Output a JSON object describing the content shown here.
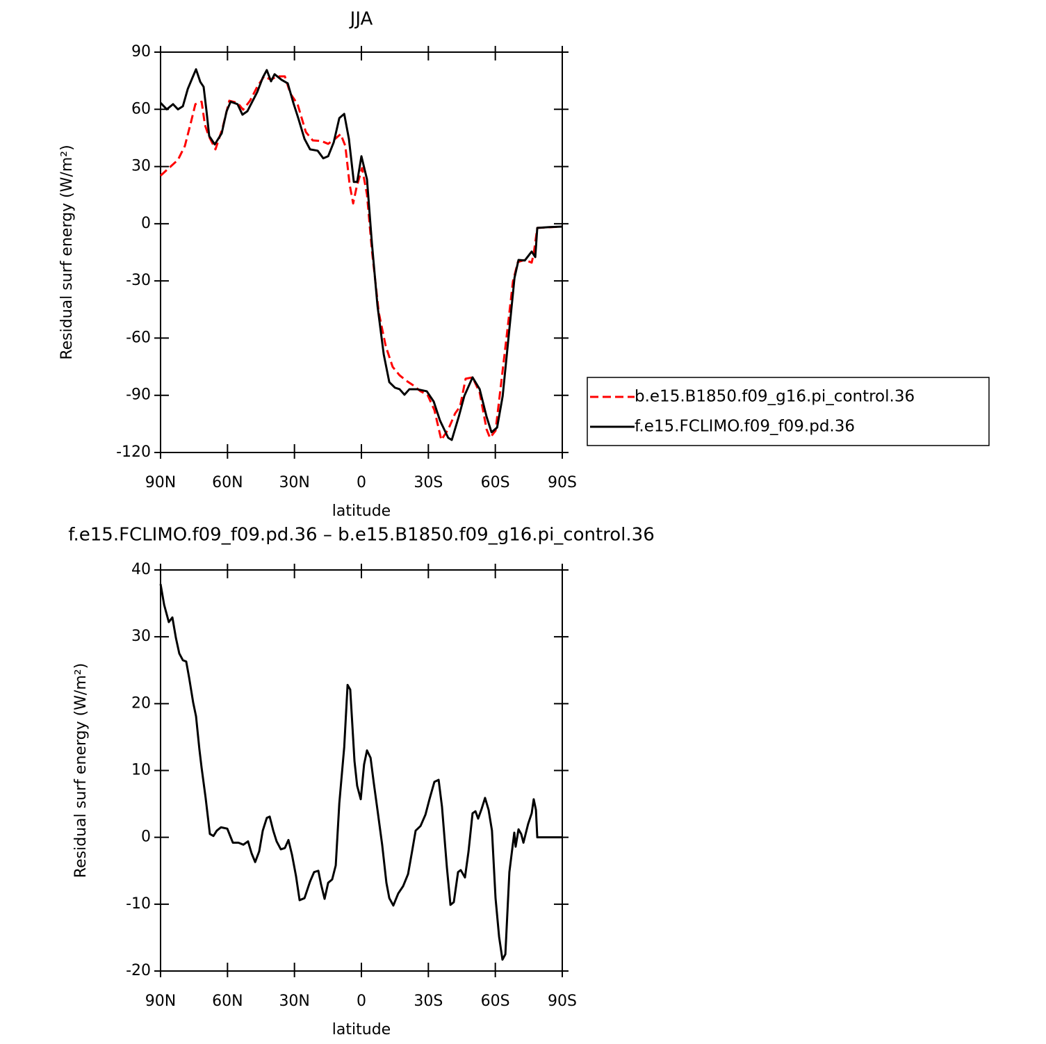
{
  "chart_data": [
    {
      "type": "line",
      "title": "JJA",
      "xlabel": "latitude",
      "ylabel": "Residual surf energy (W/m²)",
      "xlim": [
        90,
        -90
      ],
      "ylim": [
        -120,
        90
      ],
      "xticks": [
        {
          "value": 90,
          "label": "90N"
        },
        {
          "value": 60,
          "label": "60N"
        },
        {
          "value": 30,
          "label": "30N"
        },
        0,
        {
          "value": -30,
          "label": "30S"
        },
        {
          "value": -60,
          "label": "60S"
        },
        {
          "value": -90,
          "label": "90S"
        }
      ],
      "yticks": [
        -120,
        -90,
        -60,
        -30,
        0,
        30,
        60,
        90
      ],
      "legend": "right",
      "series": [
        {
          "name": "b.e15.B1850.f09_g16.pi_control.36",
          "color": "#ff0000",
          "line_style": "dashed",
          "x": [
            90,
            85.6,
            82.2,
            79.1,
            76.3,
            74.4,
            71.6,
            70.1,
            68.5,
            65.4,
            62.3,
            59.2,
            55.5,
            53,
            49.9,
            46.7,
            43.6,
            40.5,
            38,
            34.3,
            31.8,
            28.6,
            24.9,
            21.8,
            18,
            14.9,
            11.8,
            9.3,
            7.2,
            5.3,
            3.7,
            2.2,
            -0.3,
            -2.5,
            -4.7,
            -7.8,
            -10.9,
            -14,
            -17.1,
            -20.2,
            -23.4,
            -26.5,
            -29.6,
            -32.7,
            -35.8,
            -38.9,
            -42,
            -44.2,
            -46.7,
            -49.8,
            -53,
            -56.1,
            -57.6,
            -60.1,
            -62.3,
            -65.4,
            -67.9,
            -70.1,
            -73.2,
            -76.3,
            -77.2,
            -78.8,
            -90
          ],
          "values": [
            25.2,
            29.9,
            33.5,
            40.8,
            53.6,
            62.7,
            64,
            51.8,
            46.3,
            39,
            49.9,
            64.5,
            63.4,
            59.8,
            64.5,
            71.8,
            77.3,
            75.5,
            77.3,
            77.3,
            68.2,
            62.7,
            48.1,
            43.7,
            43.4,
            41.9,
            44.5,
            47,
            40.8,
            20.8,
            10.6,
            19,
            29.2,
            15.3,
            -13.9,
            -46.7,
            -64.2,
            -75.1,
            -79.5,
            -82.4,
            -84.9,
            -87.9,
            -89.7,
            -97.7,
            -113.4,
            -107.9,
            -99.5,
            -95.9,
            -81.3,
            -80.6,
            -88.6,
            -107.9,
            -112.3,
            -108.6,
            -86.8,
            -55.8,
            -30.3,
            -20.1,
            -19,
            -20.4,
            -15.7,
            -2.2,
            -1.5
          ]
        },
        {
          "name": "f.e15.FCLIMO.f09_f09.pd.36",
          "color": "#000000",
          "line_style": "solid",
          "x": [
            90,
            87.2,
            84.4,
            82.2,
            80,
            77.8,
            75.7,
            74.1,
            72.2,
            70.7,
            69.4,
            68.2,
            65.7,
            62.6,
            60.4,
            58.6,
            55.5,
            53.3,
            51.1,
            48.9,
            46.7,
            44.2,
            42.4,
            40.5,
            38.9,
            35.8,
            33,
            30.5,
            28.3,
            25.5,
            23,
            19.6,
            17.1,
            14.9,
            12.4,
            9.9,
            7.7,
            5.6,
            3.4,
            1.9,
            0,
            -2.5,
            -4.7,
            -7.2,
            -10,
            -12.5,
            -15,
            -17.1,
            -19.3,
            -21.5,
            -24.9,
            -29.3,
            -32.4,
            -35.2,
            -38.9,
            -40.5,
            -43.6,
            -46.1,
            -49.8,
            -53,
            -56.1,
            -58.3,
            -60.8,
            -63.3,
            -66.1,
            -68.6,
            -70.4,
            -73.2,
            -76.3,
            -77.9,
            -78.8,
            -84.1,
            -90
          ],
          "values": [
            63.4,
            60,
            62.7,
            60,
            61.6,
            70.7,
            76.6,
            81,
            74.4,
            71.8,
            59,
            46,
            41.6,
            47.4,
            59,
            64,
            62.7,
            57.2,
            59,
            64,
            69,
            76.6,
            80.6,
            74.7,
            78.4,
            75.5,
            73.6,
            63.4,
            55.4,
            44.5,
            39,
            38.3,
            34.3,
            35.4,
            42.7,
            55.4,
            57.6,
            44.5,
            21.9,
            21.9,
            35.4,
            23.3,
            -10.2,
            -43,
            -68.5,
            -83.1,
            -86,
            -86.8,
            -89.7,
            -86.8,
            -86.8,
            -87.9,
            -93.3,
            -103.2,
            -112.3,
            -113.4,
            -101.3,
            -90.4,
            -80.6,
            -86.8,
            -101.3,
            -109.4,
            -106.9,
            -90.4,
            -57.6,
            -28.4,
            -19,
            -19.3,
            -14.6,
            -17.5,
            -2.2,
            -1.8,
            -1.5
          ]
        }
      ]
    },
    {
      "type": "line",
      "title": "f.e15.FCLIMO.f09_f09.pd.36 – b.e15.B1850.f09_g16.pi_control.36",
      "xlabel": "latitude",
      "ylabel": "Residual surf energy (W/m²)",
      "xlim": [
        90,
        -90
      ],
      "ylim": [
        -20,
        40
      ],
      "xticks": [
        {
          "value": 90,
          "label": "90N"
        },
        {
          "value": 60,
          "label": "60N"
        },
        {
          "value": 30,
          "label": "30N"
        },
        0,
        {
          "value": -30,
          "label": "30S"
        },
        {
          "value": -60,
          "label": "60S"
        },
        {
          "value": -90,
          "label": "90S"
        }
      ],
      "yticks": [
        -20,
        -10,
        0,
        10,
        20,
        30,
        40
      ],
      "color": "#000000",
      "x": [
        90,
        88.4,
        86.3,
        84.7,
        83.1,
        81.6,
        80,
        78.5,
        77.2,
        75.4,
        74.1,
        72.6,
        71.6,
        69.8,
        67.9,
        66.3,
        64.8,
        62.9,
        60.1,
        57.6,
        55.1,
        52.9,
        50.8,
        49.2,
        47.6,
        45.8,
        44.2,
        42.4,
        41.1,
        39.5,
        38,
        36.1,
        34.3,
        32.7,
        31.1,
        29.3,
        27.7,
        25.5,
        23,
        21.2,
        19.3,
        18.1,
        16.5,
        14.9,
        13.1,
        11.5,
        9.9,
        7.7,
        6.2,
        5,
        3.1,
        1.9,
        0.3,
        -1.2,
        -2.5,
        -4.1,
        -5.6,
        -7.2,
        -9.3,
        -11.2,
        -12.5,
        -14.3,
        -16.5,
        -18.7,
        -20.9,
        -22.7,
        -24.3,
        -26.5,
        -28.7,
        -30.5,
        -32.7,
        -34.6,
        -36.1,
        -38.3,
        -39.9,
        -41.4,
        -43.3,
        -44.5,
        -46.4,
        -48,
        -49.8,
        -51.1,
        -52.3,
        -53.9,
        -55.4,
        -57,
        -58.5,
        -60.1,
        -61.7,
        -63.2,
        -64.5,
        -66.3,
        -68.5,
        -69.1,
        -70.4,
        -71.6,
        -72.6,
        -74.7,
        -76.3,
        -77.2,
        -78.2,
        -78.8,
        -84.1,
        -90
      ],
      "values": [
        37.9,
        34.8,
        32.2,
        32.9,
        29.8,
        27.5,
        26.5,
        26.3,
        23.9,
        20.2,
        18.1,
        13.2,
        10.4,
        5.9,
        0.5,
        0.2,
        1,
        1.5,
        1.3,
        -0.8,
        -0.8,
        -1.1,
        -0.6,
        -2.4,
        -3.7,
        -2.1,
        1,
        2.9,
        3.1,
        1,
        -0.6,
        -1.8,
        -1.6,
        -0.4,
        -2.6,
        -5.8,
        -9.4,
        -9.1,
        -6.6,
        -5.2,
        -5,
        -7,
        -9.2,
        -6.8,
        -6.3,
        -4.2,
        5.1,
        13.5,
        22.8,
        22.1,
        11.4,
        7.7,
        5.7,
        10.9,
        13,
        11.9,
        8,
        4.1,
        -1.1,
        -6.8,
        -9.1,
        -10.2,
        -8.4,
        -7.3,
        -5.5,
        -2.1,
        1,
        1.7,
        3.4,
        5.7,
        8.3,
        8.6,
        4.6,
        -4.5,
        -10.1,
        -9.7,
        -5.2,
        -4.9,
        -6,
        -2.1,
        3.6,
        3.9,
        2.8,
        4.3,
        5.9,
        4.1,
        1,
        -9.1,
        -14.9,
        -18.3,
        -17.5,
        -5.2,
        0.7,
        -1.4,
        1.2,
        0.5,
        -0.8,
        2,
        3.6,
        5.7,
        4.1,
        0,
        0,
        0
      ]
    }
  ]
}
